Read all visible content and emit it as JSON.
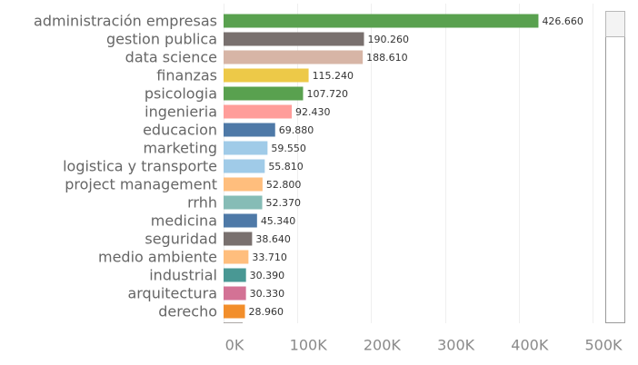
{
  "chart_data": {
    "type": "bar",
    "orientation": "horizontal",
    "categories": [
      "administración empresas",
      "gestion publica",
      "data science",
      "finanzas",
      "psicologia",
      "ingenieria",
      "educacion",
      "marketing",
      "logistica y transporte",
      "project management",
      "rrhh",
      "medicina",
      "seguridad",
      "medio ambiente",
      "industrial",
      "arquitectura",
      "derecho"
    ],
    "values": [
      426660,
      190260,
      188610,
      115240,
      107720,
      92430,
      69880,
      59550,
      55810,
      52800,
      52370,
      45340,
      38640,
      33710,
      30390,
      30330,
      28960
    ],
    "value_labels": [
      "426.660",
      "190.260",
      "188.610",
      "115.240",
      "107.720",
      "92.430",
      "69.880",
      "59.550",
      "55.810",
      "52.800",
      "52.370",
      "45.340",
      "38.640",
      "33.710",
      "30.390",
      "30.330",
      "28.960"
    ],
    "colors": [
      "#59a14f",
      "#79706e",
      "#d7b5a6",
      "#edc948",
      "#59a14f",
      "#ff9d9a",
      "#4e79a7",
      "#a0cbe8",
      "#a0cbe8",
      "#ffbe7d",
      "#86bcb6",
      "#4e79a7",
      "#79706e",
      "#ffbe7d",
      "#499894",
      "#d37295",
      "#f28e2b"
    ],
    "partial_next_bar_color": "#59504d",
    "x_ticks": [
      0,
      100000,
      200000,
      300000,
      400000,
      500000
    ],
    "x_tick_labels": [
      "0K",
      "100K",
      "200K",
      "300K",
      "400K",
      "500K"
    ],
    "xlim": [
      0,
      500000
    ],
    "grid": true,
    "title": "",
    "xlabel": "",
    "ylabel": ""
  },
  "scrollbar": {
    "thumb_fraction": 0.04
  }
}
